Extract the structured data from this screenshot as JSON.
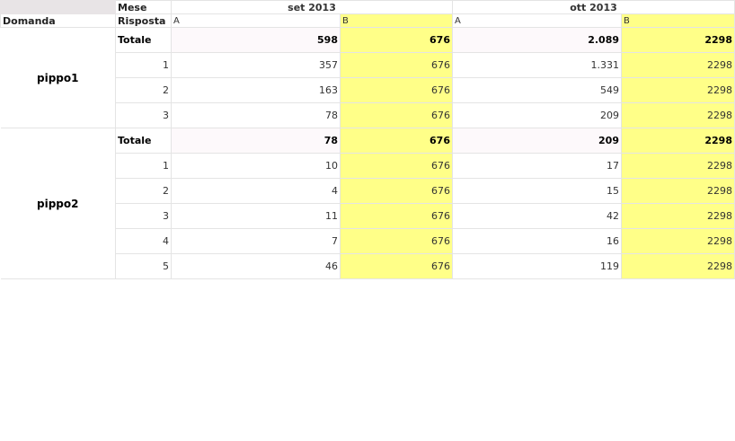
{
  "header": {
    "mese_label": "Mese",
    "domanda_label": "Domanda",
    "risposta_label": "Risposta",
    "months": [
      "set 2013",
      "ott 2013"
    ],
    "sub_columns": [
      "A",
      "B",
      "A",
      "B"
    ]
  },
  "colors": {
    "highlight": "#ffff88",
    "total_row": "#fdf9fb"
  },
  "groups": [
    {
      "domanda": "pippo1",
      "rows": [
        {
          "risposta": "Totale",
          "values": [
            "598",
            "676",
            "2.089",
            "2298"
          ],
          "total": true
        },
        {
          "risposta": "1",
          "values": [
            "357",
            "676",
            "1.331",
            "2298"
          ]
        },
        {
          "risposta": "2",
          "values": [
            "163",
            "676",
            "549",
            "2298"
          ]
        },
        {
          "risposta": "3",
          "values": [
            "78",
            "676",
            "209",
            "2298"
          ]
        }
      ]
    },
    {
      "domanda": "pippo2",
      "rows": [
        {
          "risposta": "Totale",
          "values": [
            "78",
            "676",
            "209",
            "2298"
          ],
          "total": true
        },
        {
          "risposta": "1",
          "values": [
            "10",
            "676",
            "17",
            "2298"
          ]
        },
        {
          "risposta": "2",
          "values": [
            "4",
            "676",
            "15",
            "2298"
          ]
        },
        {
          "risposta": "3",
          "values": [
            "11",
            "676",
            "42",
            "2298"
          ]
        },
        {
          "risposta": "4",
          "values": [
            "7",
            "676",
            "16",
            "2298"
          ]
        },
        {
          "risposta": "5",
          "values": [
            "46",
            "676",
            "119",
            "2298"
          ]
        }
      ]
    }
  ]
}
